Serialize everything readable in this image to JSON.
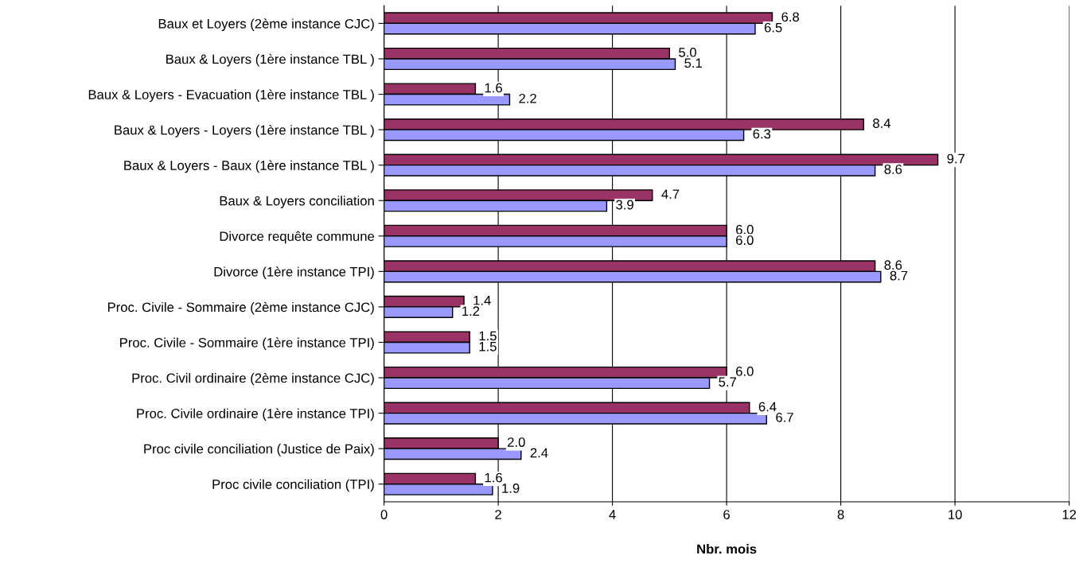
{
  "chart_data": {
    "type": "bar",
    "orientation": "horizontal",
    "categories": [
      "Baux et Loyers (2ème instance CJC)",
      "Baux & Loyers (1ère instance TBL )",
      "Baux & Loyers - Evacuation (1ère instance TBL )",
      "Baux & Loyers - Loyers (1ère instance TBL )",
      "Baux & Loyers - Baux (1ère instance TBL )",
      "Baux & Loyers conciliation",
      "Divorce requête commune",
      "Divorce (1ère instance TPI)",
      "Proc. Civile - Sommaire (2ème instance CJC)",
      "Proc. Civile - Sommaire (1ère instance TPI)",
      "Proc. Civil ordinaire (2ème instance CJC)",
      "Proc. Civile ordinaire (1ère instance TPI)",
      "Proc civile conciliation (Justice de Paix)",
      "Proc civile conciliation (TPI)"
    ],
    "series": [
      {
        "color": "#993366",
        "values": [
          6.8,
          5.0,
          1.6,
          8.4,
          9.7,
          4.7,
          6.0,
          8.6,
          1.4,
          1.5,
          6.0,
          6.4,
          2.0,
          1.6
        ],
        "value_labels": [
          "6.8",
          "5.0",
          "1.6",
          "8.4",
          "9.7",
          "4.7",
          "6.0",
          "8.6",
          "1.4",
          "1.5",
          "6.0",
          "6.4",
          "2.0",
          "1.6"
        ]
      },
      {
        "color": "#9999ff",
        "values": [
          6.5,
          5.1,
          2.2,
          6.3,
          8.6,
          3.9,
          6.0,
          8.7,
          1.2,
          1.5,
          5.7,
          6.7,
          2.4,
          1.9
        ],
        "value_labels": [
          "6.5",
          "5.1",
          "2.2",
          "6.3",
          "8.6",
          "3.9",
          "6.0",
          "8.7",
          "1.2",
          "1.5",
          "5.7",
          "6.7",
          "2.4",
          "1.9"
        ]
      }
    ],
    "xlim": [
      0,
      12
    ],
    "xticks": [
      0,
      2,
      4,
      6,
      8,
      10,
      12
    ],
    "xlabel": "Nbr. mois",
    "grid": "x",
    "legend": false
  }
}
